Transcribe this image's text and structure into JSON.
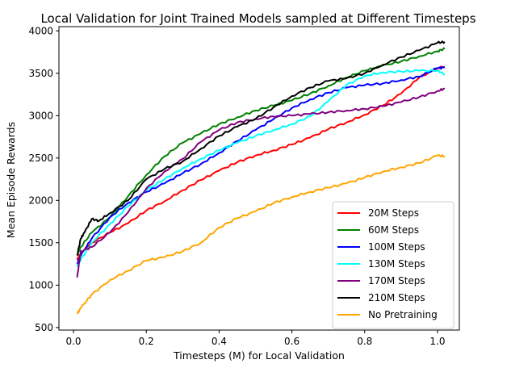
{
  "chart_data": {
    "type": "line",
    "title": "Local Validation for Joint Trained Models sampled at Different Timesteps",
    "xlabel": "Timesteps (M) for Local Validation",
    "ylabel": "Mean Episode Rewards",
    "xlim": [
      -0.04,
      1.06
    ],
    "ylim": [
      470,
      4050
    ],
    "xticks": [
      0.0,
      0.2,
      0.4,
      0.6,
      0.8,
      1.0
    ],
    "xtick_labels": [
      "0.0",
      "0.2",
      "0.4",
      "0.6",
      "0.8",
      "1.0"
    ],
    "yticks": [
      500,
      1000,
      1500,
      2000,
      2500,
      3000,
      3500,
      4000
    ],
    "ytick_labels": [
      "500",
      "1000",
      "1500",
      "2000",
      "2500",
      "3000",
      "3500",
      "4000"
    ],
    "legend_position": "lower-right",
    "series": [
      {
        "name": "20M Steps",
        "color": "#ff0000",
        "x": [
          0.01,
          0.02,
          0.05,
          0.1,
          0.15,
          0.2,
          0.25,
          0.3,
          0.35,
          0.4,
          0.45,
          0.5,
          0.55,
          0.6,
          0.65,
          0.7,
          0.75,
          0.8,
          0.85,
          0.9,
          0.95,
          1.0,
          1.02
        ],
        "y": [
          1300,
          1380,
          1500,
          1620,
          1730,
          1880,
          1990,
          2120,
          2240,
          2350,
          2450,
          2530,
          2590,
          2660,
          2740,
          2840,
          2920,
          3010,
          3120,
          3260,
          3450,
          3560,
          3580
        ]
      },
      {
        "name": "60M Steps",
        "color": "#008000",
        "x": [
          0.01,
          0.02,
          0.05,
          0.1,
          0.15,
          0.2,
          0.25,
          0.3,
          0.35,
          0.4,
          0.45,
          0.5,
          0.55,
          0.6,
          0.65,
          0.7,
          0.75,
          0.8,
          0.85,
          0.9,
          0.95,
          1.0,
          1.02
        ],
        "y": [
          1350,
          1450,
          1620,
          1800,
          2050,
          2300,
          2520,
          2680,
          2790,
          2900,
          2980,
          3060,
          3120,
          3180,
          3260,
          3350,
          3450,
          3530,
          3590,
          3640,
          3700,
          3760,
          3790
        ]
      },
      {
        "name": "100M Steps",
        "color": "#0000ff",
        "x": [
          0.01,
          0.02,
          0.05,
          0.1,
          0.15,
          0.2,
          0.25,
          0.3,
          0.35,
          0.4,
          0.45,
          0.5,
          0.55,
          0.6,
          0.65,
          0.7,
          0.75,
          0.8,
          0.85,
          0.9,
          0.95,
          1.0,
          1.02
        ],
        "y": [
          1250,
          1350,
          1550,
          1800,
          1970,
          2100,
          2200,
          2320,
          2430,
          2560,
          2700,
          2830,
          2960,
          3090,
          3190,
          3270,
          3330,
          3360,
          3380,
          3420,
          3460,
          3560,
          3570
        ]
      },
      {
        "name": "130M Steps",
        "color": "#00ffff",
        "x": [
          0.01,
          0.02,
          0.05,
          0.1,
          0.15,
          0.2,
          0.25,
          0.3,
          0.35,
          0.4,
          0.45,
          0.5,
          0.55,
          0.6,
          0.65,
          0.7,
          0.75,
          0.8,
          0.85,
          0.9,
          0.95,
          1.0,
          1.02
        ],
        "y": [
          1220,
          1300,
          1500,
          1720,
          1930,
          2120,
          2250,
          2380,
          2490,
          2590,
          2680,
          2760,
          2830,
          2900,
          2990,
          3170,
          3360,
          3470,
          3510,
          3520,
          3530,
          3530,
          3490
        ]
      },
      {
        "name": "170M Steps",
        "color": "#800080",
        "x": [
          0.01,
          0.02,
          0.05,
          0.1,
          0.15,
          0.2,
          0.25,
          0.3,
          0.35,
          0.4,
          0.45,
          0.5,
          0.55,
          0.6,
          0.65,
          0.7,
          0.75,
          0.8,
          0.85,
          0.9,
          0.95,
          1.0,
          1.02
        ],
        "y": [
          1090,
          1400,
          1450,
          1620,
          1860,
          2140,
          2340,
          2490,
          2690,
          2830,
          2920,
          2960,
          2990,
          3000,
          3020,
          3040,
          3060,
          3080,
          3110,
          3160,
          3220,
          3290,
          3320
        ]
      },
      {
        "name": "210M Steps",
        "color": "#000000",
        "x": [
          0.01,
          0.02,
          0.03,
          0.05,
          0.07,
          0.1,
          0.15,
          0.2,
          0.25,
          0.3,
          0.35,
          0.4,
          0.45,
          0.5,
          0.55,
          0.6,
          0.65,
          0.7,
          0.75,
          0.8,
          0.85,
          0.9,
          0.95,
          1.0,
          1.02
        ],
        "y": [
          1350,
          1550,
          1620,
          1780,
          1760,
          1850,
          2000,
          2250,
          2370,
          2460,
          2610,
          2760,
          2870,
          2960,
          3100,
          3230,
          3330,
          3410,
          3440,
          3500,
          3600,
          3690,
          3770,
          3860,
          3870
        ]
      },
      {
        "name": "No Pretraining",
        "color": "#ffa500",
        "x": [
          0.01,
          0.02,
          0.05,
          0.1,
          0.15,
          0.2,
          0.25,
          0.3,
          0.35,
          0.4,
          0.45,
          0.5,
          0.55,
          0.6,
          0.65,
          0.7,
          0.75,
          0.8,
          0.85,
          0.9,
          0.95,
          1.0,
          1.02
        ],
        "y": [
          660,
          730,
          890,
          1060,
          1170,
          1290,
          1330,
          1400,
          1500,
          1680,
          1790,
          1870,
          1970,
          2040,
          2100,
          2150,
          2200,
          2270,
          2340,
          2390,
          2440,
          2530,
          2520
        ]
      }
    ]
  }
}
